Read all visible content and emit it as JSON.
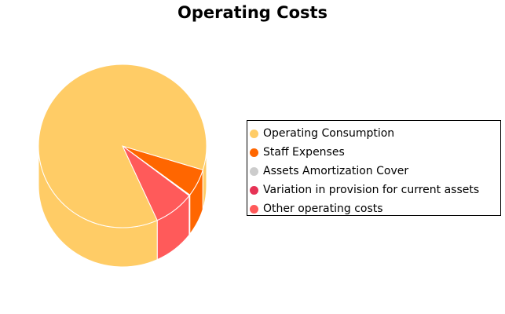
{
  "chart_data": {
    "type": "pie",
    "title": "Operating Costs",
    "style": "3d-cylinder",
    "legend_position": "right",
    "slices": [
      {
        "label": "Operating Consumption",
        "value": 86.5,
        "color": "#FFCC66"
      },
      {
        "label": "Staff Expenses",
        "value": 5.5,
        "color": "#FF6600"
      },
      {
        "label": "Assets Amortization Cover",
        "value": 0.1,
        "color": "#CCCCCC"
      },
      {
        "label": "Variation in provision for current assets",
        "value": 0.1,
        "color": "#E63355"
      },
      {
        "label": "Other operating costs",
        "value": 7.8,
        "color": "#FF5A5A"
      }
    ]
  }
}
